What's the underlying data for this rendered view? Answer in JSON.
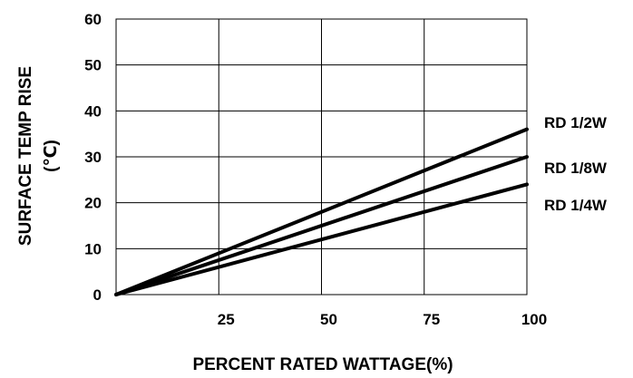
{
  "chart_data": {
    "type": "line",
    "xlabel": "PERCENT RATED WATTAGE(%)",
    "ylabel_line1": "SURFACE TEMP RISE",
    "ylabel_line2": "(℃)",
    "xlim": [
      0,
      100
    ],
    "ylim": [
      0,
      60
    ],
    "x_ticks": [
      "25",
      "50",
      "75",
      "100"
    ],
    "y_ticks": [
      "0",
      "10",
      "20",
      "30",
      "40",
      "50",
      "60"
    ],
    "grid": true,
    "legend": "labels at right end of each line",
    "series": [
      {
        "name": "RD 1/2W",
        "x": [
          0,
          100
        ],
        "y": [
          0,
          36
        ]
      },
      {
        "name": "RD 1/8W",
        "x": [
          0,
          100
        ],
        "y": [
          0,
          30
        ]
      },
      {
        "name": "RD 1/4W",
        "x": [
          0,
          100
        ],
        "y": [
          0,
          24
        ]
      }
    ]
  }
}
